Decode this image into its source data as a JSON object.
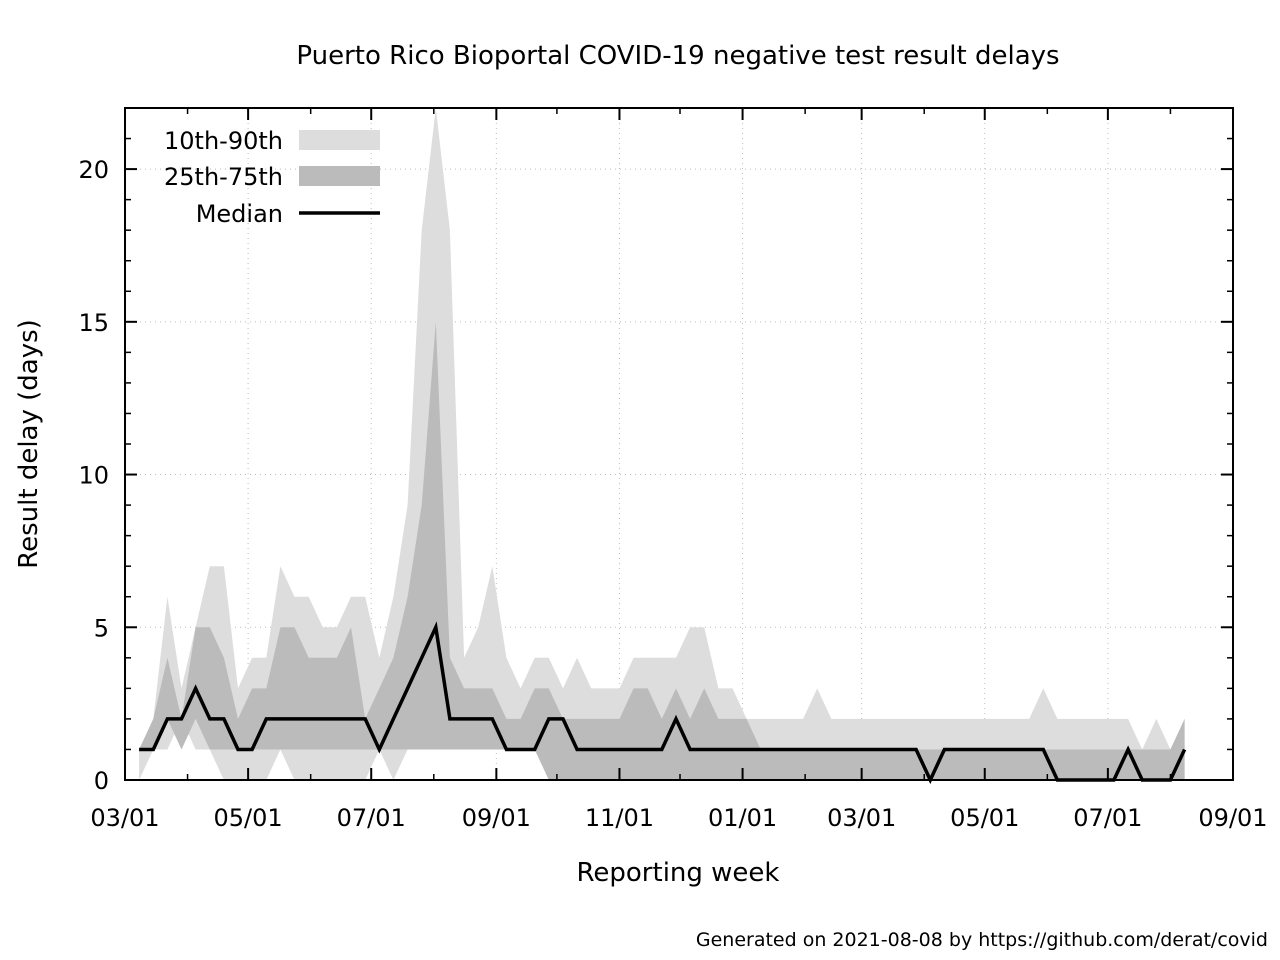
{
  "chart_data": {
    "type": "area",
    "title": "Puerto Rico Bioportal COVID-19 negative test result delays",
    "xlabel": "Reporting week",
    "ylabel": "Result delay (days)",
    "xlim": [
      "2020-03-01",
      "2021-09-01"
    ],
    "ylim": [
      0,
      22
    ],
    "x_ticks": [
      "03/01",
      "05/01",
      "07/01",
      "09/01",
      "11/01",
      "01/01",
      "03/01",
      "05/01",
      "07/01",
      "09/01"
    ],
    "y_ticks": [
      0,
      5,
      10,
      15,
      20
    ],
    "grid": true,
    "legend_position": "top-left",
    "legend": [
      {
        "label": "10th-90th",
        "color": "#dddddd"
      },
      {
        "label": "25th-75th",
        "color": "#bbbbbb"
      },
      {
        "label": "Median",
        "color": "#000000"
      }
    ],
    "x": [
      "2020-03-08",
      "2020-03-15",
      "2020-03-22",
      "2020-03-29",
      "2020-04-05",
      "2020-04-12",
      "2020-04-19",
      "2020-04-26",
      "2020-05-03",
      "2020-05-10",
      "2020-05-17",
      "2020-05-24",
      "2020-05-31",
      "2020-06-07",
      "2020-06-14",
      "2020-06-21",
      "2020-06-28",
      "2020-07-05",
      "2020-07-12",
      "2020-07-19",
      "2020-07-26",
      "2020-08-02",
      "2020-08-09",
      "2020-08-16",
      "2020-08-23",
      "2020-08-30",
      "2020-09-06",
      "2020-09-13",
      "2020-09-20",
      "2020-09-27",
      "2020-10-04",
      "2020-10-11",
      "2020-10-18",
      "2020-10-25",
      "2020-11-01",
      "2020-11-08",
      "2020-11-15",
      "2020-11-22",
      "2020-11-29",
      "2020-12-06",
      "2020-12-13",
      "2020-12-20",
      "2020-12-27",
      "2021-01-03",
      "2021-01-10",
      "2021-01-17",
      "2021-01-24",
      "2021-01-31",
      "2021-02-07",
      "2021-02-14",
      "2021-02-21",
      "2021-02-28",
      "2021-03-07",
      "2021-03-14",
      "2021-03-21",
      "2021-03-28",
      "2021-04-04",
      "2021-04-11",
      "2021-04-18",
      "2021-04-25",
      "2021-05-02",
      "2021-05-09",
      "2021-05-16",
      "2021-05-23",
      "2021-05-30",
      "2021-06-06",
      "2021-06-13",
      "2021-06-20",
      "2021-06-27",
      "2021-07-04",
      "2021-07-11",
      "2021-07-18",
      "2021-07-25",
      "2021-08-01",
      "2021-08-08"
    ],
    "series": [
      {
        "name": "10th-90th",
        "low": [
          0,
          1,
          1,
          2,
          1,
          1,
          0,
          0,
          0,
          0,
          1,
          0,
          0,
          0,
          0,
          0,
          0,
          1,
          0,
          1,
          2,
          1,
          1,
          1,
          1,
          1,
          1,
          1,
          1,
          1,
          0,
          0,
          0,
          0,
          0,
          0,
          0,
          0,
          0,
          0,
          0,
          0,
          0,
          0,
          0,
          0,
          0,
          0,
          0,
          0,
          0,
          0,
          0,
          0,
          0,
          0,
          0,
          0,
          0,
          0,
          0,
          0,
          0,
          0,
          0,
          0,
          0,
          0,
          0,
          0,
          0,
          0,
          0,
          0,
          0
        ],
        "high": [
          1,
          2,
          6,
          3,
          5,
          7,
          7,
          3,
          4,
          4,
          7,
          6,
          6,
          5,
          5,
          6,
          6,
          4,
          6,
          9,
          18,
          22,
          18,
          4,
          5,
          7,
          4,
          3,
          4,
          4,
          3,
          4,
          3,
          3,
          3,
          4,
          4,
          4,
          4,
          5,
          5,
          3,
          3,
          2,
          2,
          2,
          2,
          2,
          3,
          2,
          2,
          2,
          2,
          2,
          2,
          2,
          2,
          2,
          2,
          2,
          2,
          2,
          2,
          2,
          3,
          2,
          2,
          2,
          2,
          2,
          2,
          1,
          2,
          1,
          2
        ]
      },
      {
        "name": "25th-75th",
        "low": [
          1,
          1,
          2,
          1,
          2,
          1,
          1,
          1,
          1,
          1,
          1,
          1,
          1,
          1,
          1,
          1,
          1,
          1,
          1,
          1,
          1,
          1,
          1,
          1,
          1,
          1,
          1,
          1,
          1,
          0,
          0,
          0,
          0,
          0,
          0,
          0,
          0,
          0,
          0,
          0,
          0,
          0,
          0,
          0,
          0,
          0,
          0,
          0,
          0,
          0,
          0,
          0,
          0,
          0,
          0,
          0,
          0,
          0,
          0,
          0,
          0,
          0,
          0,
          0,
          0,
          0,
          0,
          0,
          0,
          0,
          0,
          0,
          0,
          0,
          0
        ],
        "high": [
          1,
          2,
          4,
          2,
          5,
          5,
          4,
          2,
          3,
          3,
          5,
          5,
          4,
          4,
          4,
          5,
          2,
          3,
          4,
          6,
          9,
          15,
          4,
          3,
          3,
          3,
          2,
          2,
          3,
          3,
          2,
          2,
          2,
          2,
          2,
          3,
          3,
          2,
          3,
          2,
          3,
          2,
          2,
          2,
          1,
          1,
          1,
          1,
          1,
          1,
          1,
          1,
          1,
          1,
          1,
          1,
          1,
          1,
          1,
          1,
          1,
          1,
          1,
          1,
          1,
          1,
          1,
          1,
          1,
          1,
          1,
          1,
          1,
          1,
          2
        ]
      },
      {
        "name": "Median",
        "values": [
          1,
          1,
          2,
          2,
          3,
          2,
          2,
          1,
          1,
          2,
          2,
          2,
          2,
          2,
          2,
          2,
          2,
          1,
          2,
          3,
          4,
          5,
          2,
          2,
          2,
          2,
          1,
          1,
          1,
          2,
          2,
          1,
          1,
          1,
          1,
          1,
          1,
          1,
          2,
          1,
          1,
          1,
          1,
          1,
          1,
          1,
          1,
          1,
          1,
          1,
          1,
          1,
          1,
          1,
          1,
          1,
          0,
          1,
          1,
          1,
          1,
          1,
          1,
          1,
          1,
          0,
          0,
          0,
          0,
          0,
          1,
          0,
          0,
          0,
          1
        ]
      }
    ]
  },
  "footer": "Generated on 2021-08-08 by https://github.com/derat/covid"
}
